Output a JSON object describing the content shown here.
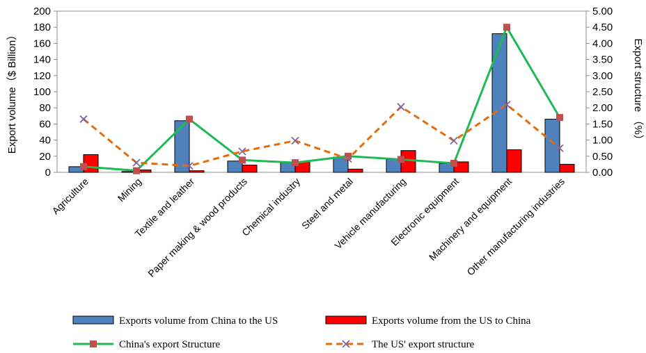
{
  "chart_data": {
    "type": "bar",
    "categories": [
      "Agriculture",
      "Mining",
      "Textile and leather",
      "Paper making & wood products",
      "Chemical industry",
      "Steel and metal",
      "Vehicle manufacturing",
      "Electronic equipment",
      "Machinery and equipment",
      "Other manufacturing industries"
    ],
    "series": [
      {
        "name": "Exports volume from China to the US",
        "type": "bar",
        "axis": "left",
        "color": "#4f81bd",
        "values": [
          7,
          1,
          64,
          14,
          12,
          19,
          16,
          11,
          172,
          66
        ]
      },
      {
        "name": "Exports volume from the US to China",
        "type": "bar",
        "axis": "left",
        "color": "#ff0000",
        "values": [
          22,
          3,
          2,
          9,
          13,
          4,
          27,
          13,
          28,
          10
        ]
      },
      {
        "name": "China's export Structure",
        "type": "line",
        "axis": "right",
        "color": "#1db954",
        "marker": "square",
        "marker_color": "#c0504d",
        "dash": "solid",
        "values": [
          0.18,
          0.05,
          1.65,
          0.38,
          0.3,
          0.5,
          0.4,
          0.28,
          4.5,
          1.7
        ]
      },
      {
        "name": "The US' export structure",
        "type": "line",
        "axis": "right",
        "color": "#e46c0a",
        "marker": "x",
        "marker_color": "#8064a2",
        "dash": "dashed",
        "values": [
          1.65,
          0.3,
          0.2,
          0.65,
          0.98,
          0.42,
          2.03,
          0.98,
          2.1,
          0.75
        ]
      }
    ],
    "left_axis": {
      "title": "Export volume（$ Billion）",
      "min": 0,
      "max": 200,
      "step": 20,
      "ticks": [
        "0",
        "20",
        "40",
        "60",
        "80",
        "100",
        "120",
        "140",
        "160",
        "180",
        "200"
      ]
    },
    "right_axis": {
      "title": "Export structure （%）",
      "min": 0,
      "max": 5,
      "step": 0.5,
      "ticks": [
        "0.00",
        "0.50",
        "1.00",
        "1.50",
        "2.00",
        "2.50",
        "3.00",
        "3.50",
        "4.00",
        "4.50",
        "5.00"
      ]
    },
    "grid": false,
    "legend_position": "bottom"
  }
}
